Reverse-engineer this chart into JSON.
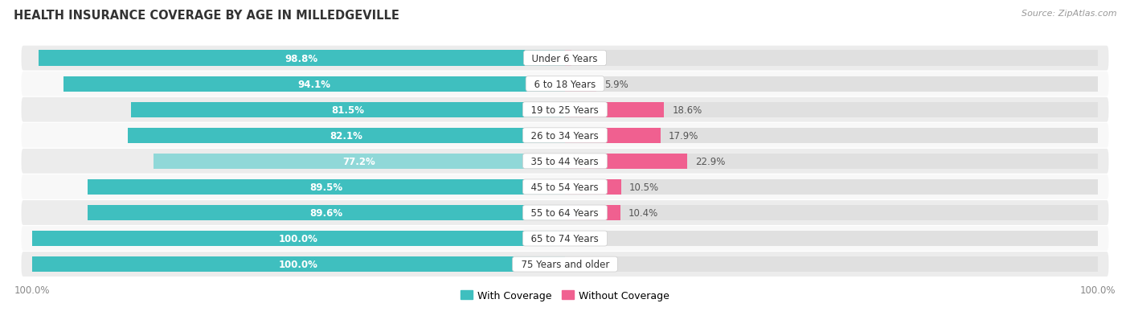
{
  "title": "HEALTH INSURANCE COVERAGE BY AGE IN MILLEDGEVILLE",
  "source": "Source: ZipAtlas.com",
  "categories": [
    "Under 6 Years",
    "6 to 18 Years",
    "19 to 25 Years",
    "26 to 34 Years",
    "35 to 44 Years",
    "45 to 54 Years",
    "55 to 64 Years",
    "65 to 74 Years",
    "75 Years and older"
  ],
  "with_coverage": [
    98.8,
    94.1,
    81.5,
    82.1,
    77.2,
    89.5,
    89.6,
    100.0,
    100.0
  ],
  "without_coverage": [
    1.2,
    5.9,
    18.6,
    17.9,
    22.9,
    10.5,
    10.4,
    0.0,
    0.0
  ],
  "color_with": "#3FBFBF",
  "color_with_light": "#90D8D8",
  "color_without": "#F06090",
  "color_without_light": "#F8B8CC",
  "background_row_light": "#ECECEC",
  "background_row_white": "#F8F8F8",
  "title_fontsize": 10.5,
  "label_fontsize": 8.5,
  "legend_fontsize": 9,
  "axis_label_fontsize": 8.5,
  "source_fontsize": 8
}
